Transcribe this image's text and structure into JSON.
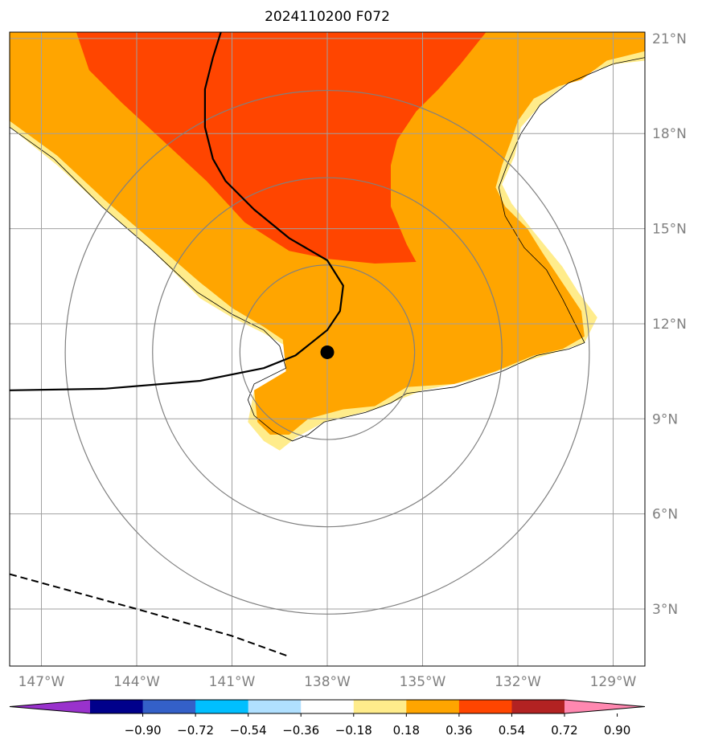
{
  "chart_data": {
    "type": "heatmap",
    "title": "2024110200 F072",
    "xlabel": "",
    "ylabel": "",
    "xlim": [
      -148,
      -128
    ],
    "ylim": [
      1.2,
      21.2
    ],
    "x_ticks": [
      -147,
      -144,
      -141,
      -138,
      -135,
      -132,
      -129
    ],
    "x_tick_labels": [
      "147°W",
      "144°W",
      "141°W",
      "138°W",
      "135°W",
      "132°W",
      "129°W"
    ],
    "y_ticks": [
      3,
      6,
      9,
      12,
      15,
      18,
      21
    ],
    "y_tick_labels": [
      "3°N",
      "6°N",
      "9°N",
      "12°N",
      "15°N",
      "18°N",
      "21°N"
    ],
    "grid": true,
    "storm_center": {
      "lon": -138.0,
      "lat": 11.1
    },
    "range_rings_deg": [
      2.75,
      5.5,
      8.25
    ],
    "colorbar": {
      "levels": [
        -1.08,
        -0.9,
        -0.72,
        -0.54,
        -0.36,
        -0.18,
        0.18,
        0.36,
        0.54,
        0.72,
        0.9,
        1.08
      ],
      "tick_values": [
        -0.9,
        -0.72,
        -0.54,
        -0.36,
        -0.18,
        0.18,
        0.36,
        0.54,
        0.72,
        0.9
      ],
      "tick_labels": [
        "−0.90",
        "−0.72",
        "−0.54",
        "−0.36",
        "−0.18",
        "0.18",
        "0.36",
        "0.54",
        "0.72",
        "0.90"
      ],
      "colors": [
        "#9932cc",
        "#00008b",
        "#3460c8",
        "#00bfff",
        "#b0e0ff",
        "#ffffff",
        "#ffec8b",
        "#ffa500",
        "#ff4500",
        "#b22222",
        "#ff88b0"
      ],
      "extend": "both"
    },
    "series": [
      {
        "level_range": [
          0.18,
          0.36
        ],
        "color": "#ffec8b",
        "polygon": [
          [
            -148,
            18.2
          ],
          [
            -146.5,
            17
          ],
          [
            -145,
            15.6
          ],
          [
            -143.5,
            14.3
          ],
          [
            -142,
            12.8
          ],
          [
            -141,
            12.2
          ],
          [
            -140,
            11.7
          ],
          [
            -139.3,
            11.3
          ],
          [
            -139.1,
            10.6
          ],
          [
            -140.3,
            9.9
          ],
          [
            -140.5,
            8.9
          ],
          [
            -140,
            8.3
          ],
          [
            -139.5,
            8
          ],
          [
            -139,
            8.4
          ],
          [
            -138.1,
            8.9
          ],
          [
            -136.5,
            9.3
          ],
          [
            -135,
            9.9
          ],
          [
            -133.5,
            10.2
          ],
          [
            -131.8,
            10.8
          ],
          [
            -130.8,
            11.1
          ],
          [
            -129.9,
            11.4
          ],
          [
            -129.5,
            12.2
          ],
          [
            -130.1,
            13
          ],
          [
            -130.6,
            13.8
          ],
          [
            -131.5,
            14.9
          ],
          [
            -132.2,
            15.8
          ],
          [
            -132.5,
            16.4
          ],
          [
            -132.1,
            17.3
          ],
          [
            -131.9,
            18.2
          ],
          [
            -131.2,
            19
          ],
          [
            -130.2,
            19.8
          ],
          [
            -128.9,
            20.2
          ],
          [
            -128,
            20.3
          ],
          [
            -128,
            21.2
          ],
          [
            -148,
            21.2
          ]
        ]
      },
      {
        "level_range": [
          0.36,
          0.54
        ],
        "color": "#ffa500",
        "polygon": [
          [
            -148,
            18.4
          ],
          [
            -146.5,
            17.3
          ],
          [
            -145,
            15.9
          ],
          [
            -143.5,
            14.6
          ],
          [
            -142,
            13.3
          ],
          [
            -141,
            12.5
          ],
          [
            -140,
            11.9
          ],
          [
            -139.4,
            11.5
          ],
          [
            -139.3,
            10.5
          ],
          [
            -140.3,
            9.9
          ],
          [
            -140.2,
            8.9
          ],
          [
            -139.8,
            8.5
          ],
          [
            -139.2,
            8.5
          ],
          [
            -138.6,
            9
          ],
          [
            -137.5,
            9.3
          ],
          [
            -136.5,
            9.4
          ],
          [
            -135.5,
            10
          ],
          [
            -134,
            10.1
          ],
          [
            -132.7,
            10.5
          ],
          [
            -131.5,
            11
          ],
          [
            -130.6,
            11.2
          ],
          [
            -129.9,
            11.6
          ],
          [
            -130,
            12.4
          ],
          [
            -130.6,
            13.3
          ],
          [
            -131.2,
            14.2
          ],
          [
            -131.7,
            15
          ],
          [
            -132.4,
            15.7
          ],
          [
            -132.7,
            16.3
          ],
          [
            -132.5,
            17
          ],
          [
            -132.2,
            17.8
          ],
          [
            -132,
            18.4
          ],
          [
            -131.5,
            19.1
          ],
          [
            -130.7,
            19.5
          ],
          [
            -130,
            19.7
          ],
          [
            -129.2,
            20.3
          ],
          [
            -128,
            20.6
          ],
          [
            -128,
            21.2
          ],
          [
            -148,
            21.2
          ]
        ]
      },
      {
        "level_range": [
          0.54,
          0.72
        ],
        "color": "#ff4500",
        "polygon": [
          [
            -145.9,
            21.2
          ],
          [
            -145.5,
            20
          ],
          [
            -144.5,
            19
          ],
          [
            -143.2,
            17.8
          ],
          [
            -141.8,
            16.5
          ],
          [
            -140.6,
            15.2
          ],
          [
            -139.2,
            14.3
          ],
          [
            -138,
            14.05
          ],
          [
            -136.5,
            13.9
          ],
          [
            -135.2,
            13.95
          ],
          [
            -135.5,
            14.5
          ],
          [
            -136,
            15.7
          ],
          [
            -136,
            17
          ],
          [
            -135.8,
            17.8
          ],
          [
            -135.2,
            18.7
          ],
          [
            -134.5,
            19.4
          ],
          [
            -133.8,
            20.2
          ],
          [
            -133,
            21.2
          ]
        ]
      }
    ],
    "coastline": [
      [
        -148,
        18.2
      ],
      [
        -146.6,
        17.2
      ],
      [
        -145.1,
        15.7
      ],
      [
        -143.6,
        14.4
      ],
      [
        -142.1,
        13
      ],
      [
        -141,
        12.3
      ],
      [
        -140,
        11.8
      ],
      [
        -139.5,
        11.3
      ],
      [
        -139.3,
        10.6
      ],
      [
        -140.3,
        10.1
      ],
      [
        -140.5,
        9.6
      ],
      [
        -140.3,
        9.1
      ],
      [
        -139.7,
        8.6
      ],
      [
        -139.1,
        8.3
      ],
      [
        -138.6,
        8.5
      ],
      [
        -138.1,
        8.9
      ],
      [
        -136.8,
        9.2
      ],
      [
        -136,
        9.5
      ],
      [
        -135.5,
        9.8
      ],
      [
        -134,
        10
      ],
      [
        -132.5,
        10.5
      ],
      [
        -131.4,
        11
      ],
      [
        -130.4,
        11.2
      ],
      [
        -129.9,
        11.4
      ],
      [
        -130.2,
        12
      ],
      [
        -130.6,
        12.8
      ],
      [
        -131.1,
        13.7
      ],
      [
        -131.8,
        14.4
      ],
      [
        -132.4,
        15.4
      ],
      [
        -132.6,
        16.3
      ],
      [
        -132.3,
        17.1
      ],
      [
        -131.9,
        18
      ],
      [
        -131.3,
        18.9
      ],
      [
        -130.4,
        19.6
      ],
      [
        -129,
        20.2
      ],
      [
        -128,
        20.4
      ]
    ],
    "track_solid": [
      [
        -148,
        9.9
      ],
      [
        -145,
        9.95
      ],
      [
        -142,
        10.2
      ],
      [
        -140,
        10.6
      ],
      [
        -139,
        11
      ],
      [
        -138,
        11.8
      ],
      [
        -137.6,
        12.4
      ],
      [
        -137.5,
        13.2
      ],
      [
        -138,
        14
      ],
      [
        -139.2,
        14.7
      ],
      [
        -140.3,
        15.6
      ],
      [
        -141.2,
        16.5
      ],
      [
        -141.6,
        17.2
      ],
      [
        -141.85,
        18.2
      ],
      [
        -141.85,
        19.4
      ],
      [
        -141.6,
        20.4
      ],
      [
        -141.35,
        21.2
      ]
    ],
    "track_dashed": [
      [
        -148,
        4.1
      ],
      [
        -144,
        3.0
      ],
      [
        -141,
        2.15
      ],
      [
        -139.2,
        1.5
      ]
    ]
  }
}
